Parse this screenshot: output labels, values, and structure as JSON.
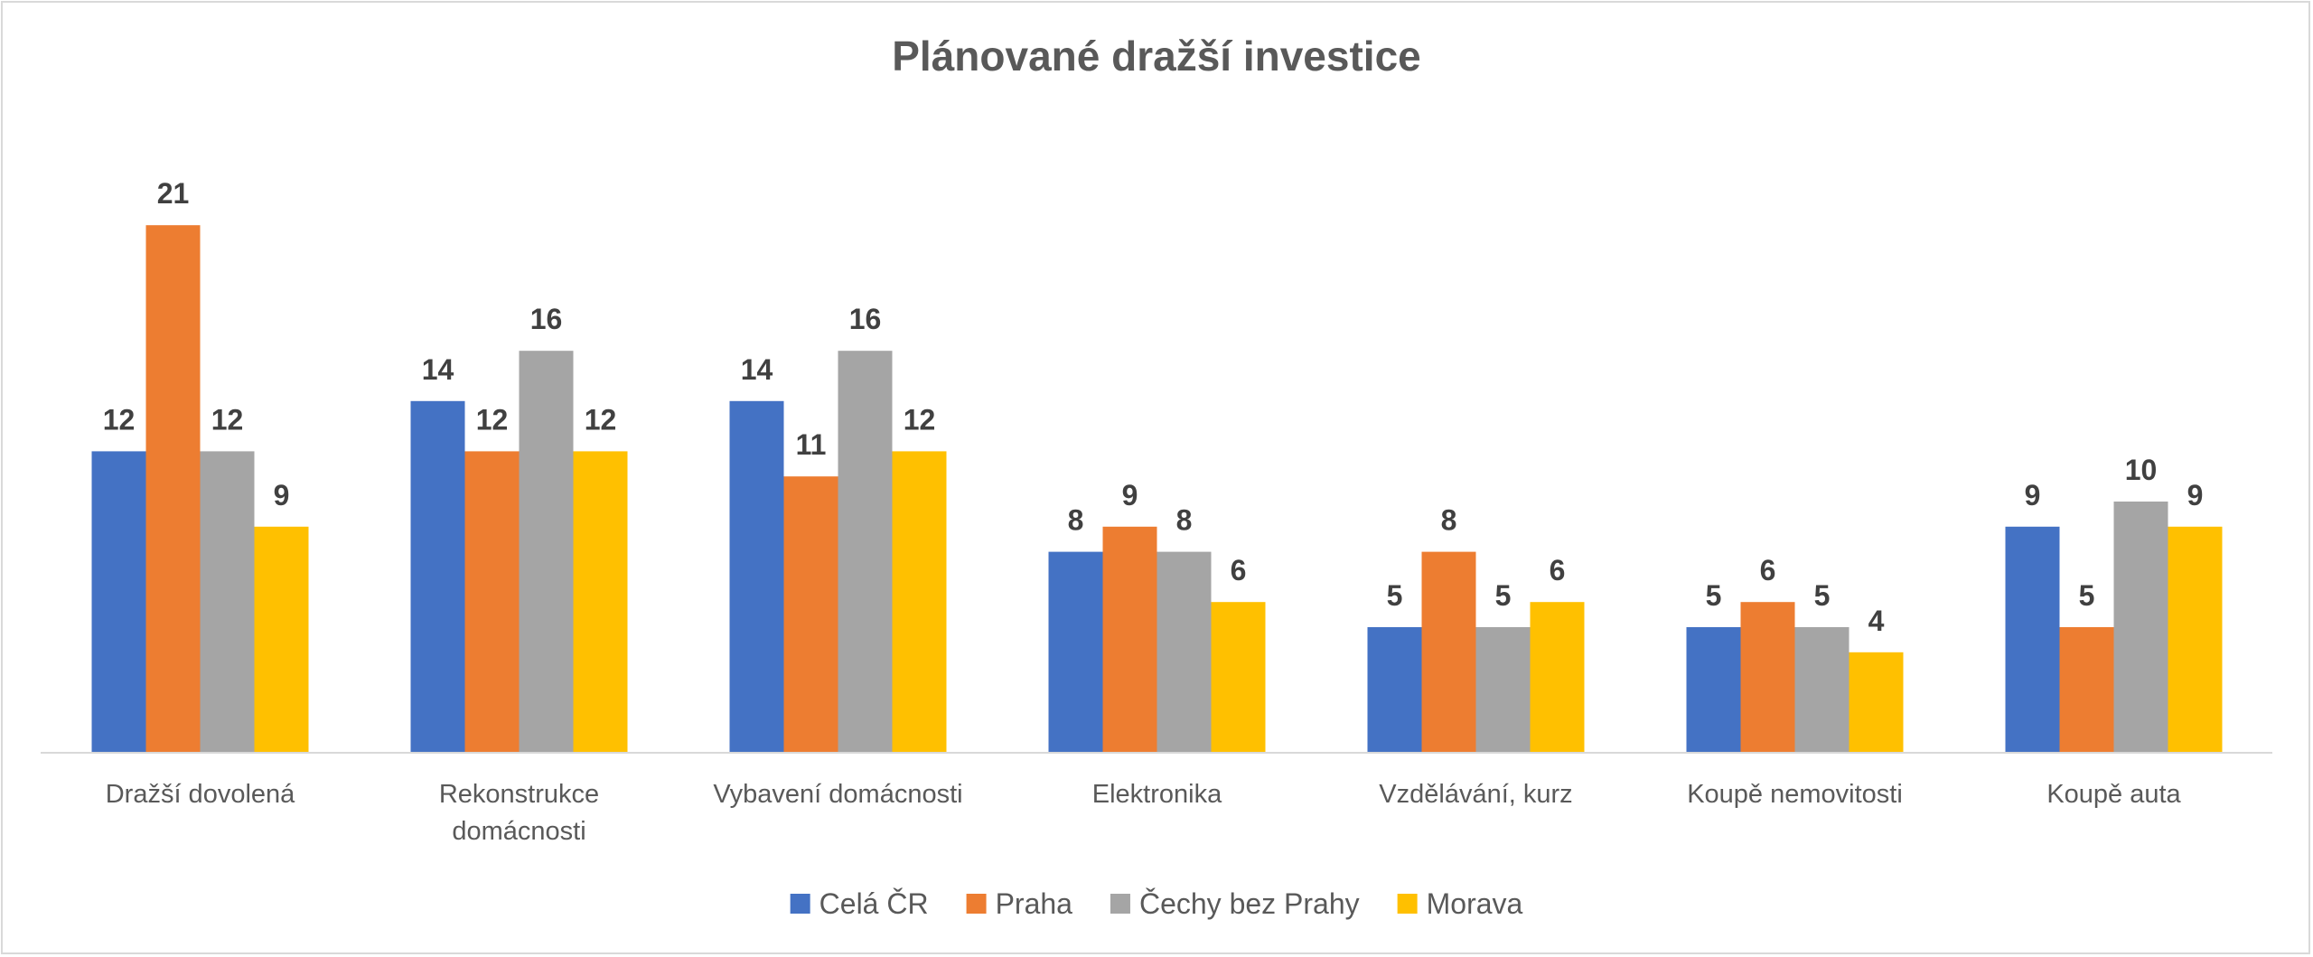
{
  "chart_data": {
    "type": "bar",
    "title": "Plánované dražší investice",
    "xlabel": "",
    "ylabel": "",
    "ylim": [
      0,
      22
    ],
    "grid": false,
    "legend_position": "bottom",
    "categories": [
      [
        "Dražší dovolená"
      ],
      [
        "Rekonstrukce",
        "domácnosti"
      ],
      [
        "Vybavení domácnosti"
      ],
      [
        "Elektronika"
      ],
      [
        "Vzdělávání, kurz"
      ],
      [
        "Koupě nemovitosti"
      ],
      [
        "Koupě auta"
      ]
    ],
    "series": [
      {
        "name": "Celá ČR",
        "color": "#4472c4",
        "values": [
          12,
          14,
          14,
          8,
          5,
          5,
          9
        ]
      },
      {
        "name": "Praha",
        "color": "#ed7d31",
        "values": [
          21,
          12,
          11,
          9,
          8,
          6,
          5
        ]
      },
      {
        "name": "Čechy bez Prahy",
        "color": "#a5a5a5",
        "values": [
          12,
          16,
          16,
          8,
          5,
          5,
          10
        ]
      },
      {
        "name": "Morava",
        "color": "#ffc000",
        "values": [
          9,
          12,
          12,
          6,
          6,
          4,
          9
        ]
      }
    ]
  }
}
